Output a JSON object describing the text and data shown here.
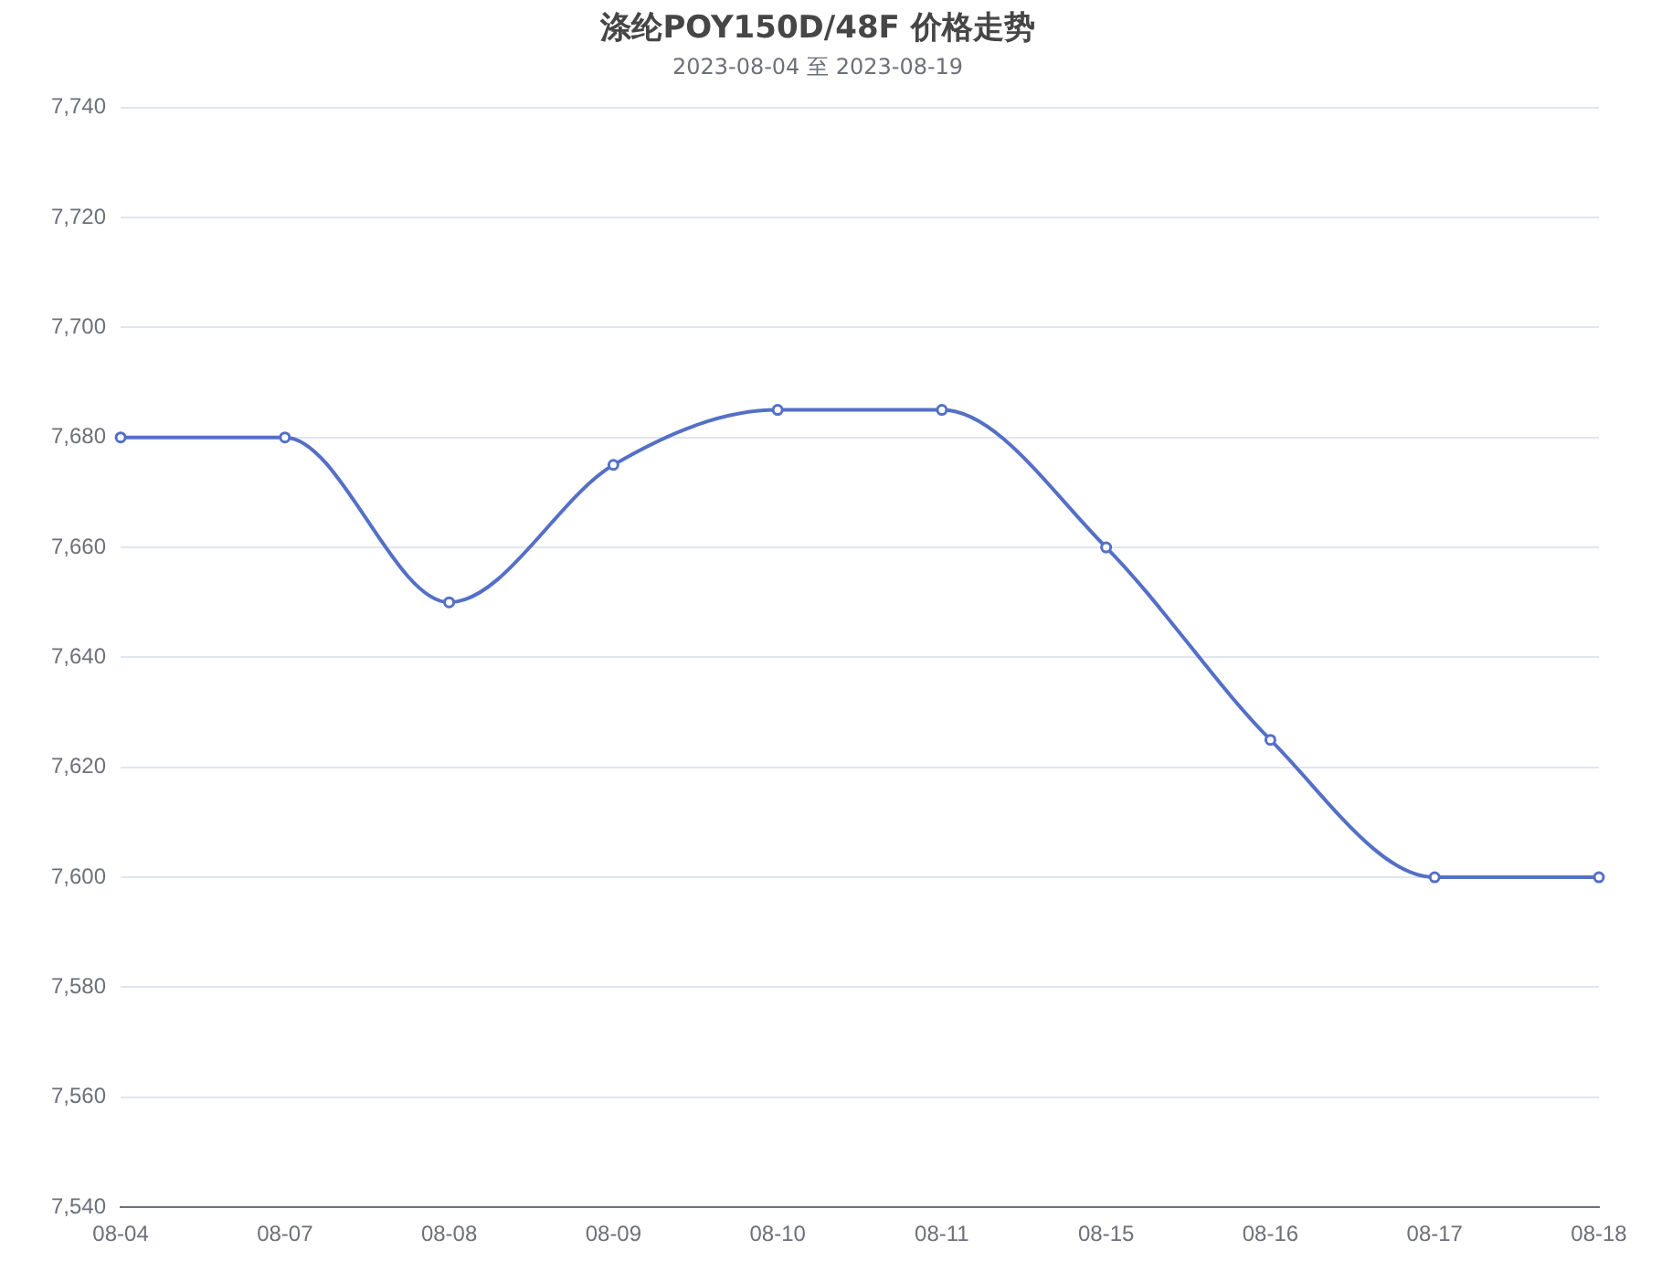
{
  "chart_data": {
    "type": "line",
    "title": "涤纶POY150D/48F 价格走势",
    "subtitle": "2023-08-04 至 2023-08-19",
    "categories": [
      "08-04",
      "08-07",
      "08-08",
      "08-09",
      "08-10",
      "08-11",
      "08-15",
      "08-16",
      "08-17",
      "08-18"
    ],
    "series": [
      {
        "color": "#5470c6",
        "values": [
          7680,
          7680,
          7650,
          7675,
          7685,
          7685,
          7660,
          7625,
          7600,
          7600
        ]
      }
    ],
    "ylim": [
      7540,
      7740
    ],
    "yticks": [
      {
        "value": 7540,
        "label": "7,540"
      },
      {
        "value": 7560,
        "label": "7,560"
      },
      {
        "value": 7580,
        "label": "7,580"
      },
      {
        "value": 7600,
        "label": "7,600"
      },
      {
        "value": 7620,
        "label": "7,620"
      },
      {
        "value": 7640,
        "label": "7,640"
      },
      {
        "value": 7660,
        "label": "7,660"
      },
      {
        "value": 7680,
        "label": "7,680"
      },
      {
        "value": 7700,
        "label": "7,700"
      },
      {
        "value": 7720,
        "label": "7,720"
      },
      {
        "value": 7740,
        "label": "7,740"
      }
    ],
    "grid": "y",
    "legend": false,
    "marker": "circle",
    "line_style": "solid"
  }
}
